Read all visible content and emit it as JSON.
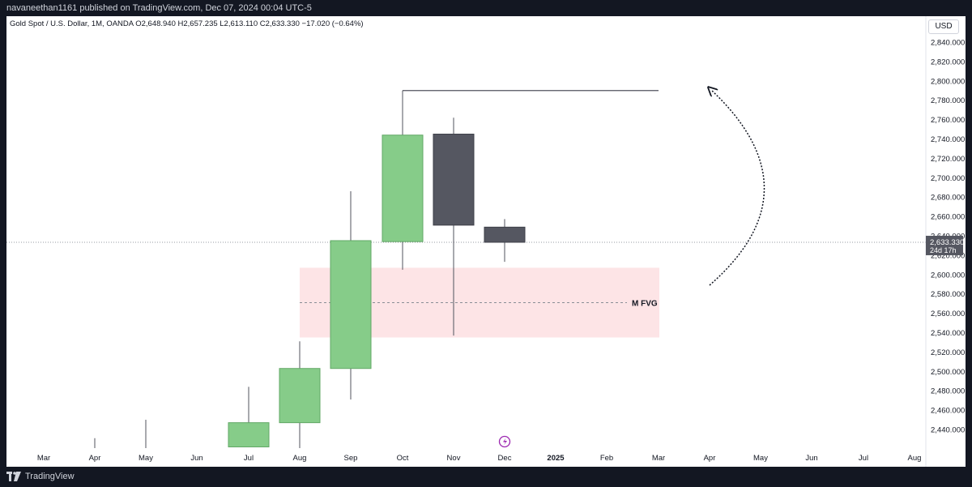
{
  "header": {
    "publisher_line": "navaneethan1161 published on TradingView.com, Dec 07, 2024 00:04 UTC-5"
  },
  "symbol_info": {
    "text": "Gold Spot / U.S. Dollar, 1M, OANDA  O2,648.940  H2,657.235  L2,613.110  C2,633.330  −17.020 (−0.64%)"
  },
  "currency_button": "USD",
  "footer": {
    "brand": "TradingView"
  },
  "chart_data": {
    "type": "candlestick",
    "y_axis": {
      "ticks": [
        "2,440.000",
        "2,460.000",
        "2,480.000",
        "2,500.000",
        "2,520.000",
        "2,540.000",
        "2,560.000",
        "2,580.000",
        "2,600.000",
        "2,620.000",
        "2,640.000",
        "2,660.000",
        "2,680.000",
        "2,700.000",
        "2,720.000",
        "2,740.000",
        "2,760.000",
        "2,780.000",
        "2,800.000",
        "2,820.000",
        "2,840.000"
      ],
      "tick_values": [
        2440,
        2460,
        2480,
        2500,
        2520,
        2540,
        2560,
        2580,
        2600,
        2620,
        2640,
        2660,
        2680,
        2700,
        2720,
        2740,
        2760,
        2780,
        2800,
        2820,
        2840
      ],
      "range": [
        2422,
        2877
      ]
    },
    "x_axis": {
      "labels": [
        "Mar",
        "Apr",
        "May",
        "Jun",
        "Jul",
        "Aug",
        "Sep",
        "Oct",
        "Nov",
        "Dec",
        "2025",
        "Feb",
        "Mar",
        "Apr",
        "May",
        "Jun",
        "Jul",
        "Aug"
      ],
      "bold_labels": [
        "2025"
      ]
    },
    "candles": [
      {
        "month": "Apr",
        "open": null,
        "high": 2431,
        "low": null,
        "close": null,
        "direction": "up"
      },
      {
        "month": "May",
        "open": null,
        "high": 2450,
        "low": null,
        "close": null,
        "direction": "up"
      },
      {
        "month": "Jul",
        "open": 2422,
        "high": 2484,
        "low": 2422,
        "close": 2447,
        "direction": "up"
      },
      {
        "month": "Aug",
        "open": 2447,
        "high": 2531,
        "low": 2420,
        "close": 2503,
        "direction": "up"
      },
      {
        "month": "Sep",
        "open": 2503,
        "high": 2686,
        "low": 2471,
        "close": 2635,
        "direction": "up"
      },
      {
        "month": "Oct",
        "open": 2634,
        "high": 2790,
        "low": 2605,
        "close": 2744,
        "direction": "up"
      },
      {
        "month": "Nov",
        "open": 2745,
        "high": 2762,
        "low": 2537,
        "close": 2651,
        "direction": "down"
      },
      {
        "month": "Dec",
        "open": 2648.94,
        "high": 2657.235,
        "low": 2613.11,
        "close": 2633.33,
        "direction": "down"
      }
    ],
    "current_price": {
      "label": "2,633.330",
      "value": 2633.33,
      "countdown": "24d 17h"
    },
    "fvg_zone": {
      "label": "M FVG",
      "top": 2607,
      "bottom": 2535,
      "mid": 2571,
      "from_month": "Sep",
      "to_month": "Mar"
    },
    "high_line": {
      "value": 2790,
      "from_month": "Oct",
      "to_month": "Mar"
    },
    "colors": {
      "up": "#86cc89",
      "down": "#555761",
      "wick": "#50535e",
      "fvg": "#fde4e6",
      "price_label": "#555761",
      "background": "#ffffff",
      "frame": "#131722"
    }
  }
}
